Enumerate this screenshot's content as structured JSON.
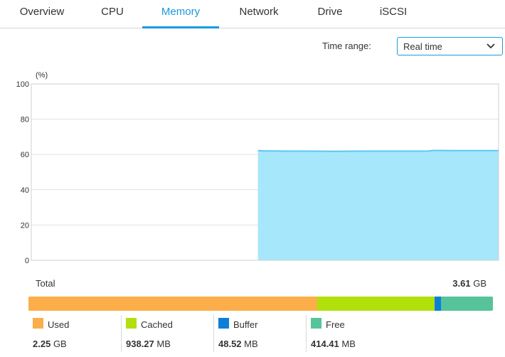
{
  "tabs": [
    {
      "label": "Overview"
    },
    {
      "label": "CPU"
    },
    {
      "label": "Memory",
      "active": true
    },
    {
      "label": "Network"
    },
    {
      "label": "Drive"
    },
    {
      "label": "iSCSI"
    }
  ],
  "time_range": {
    "label": "Time range:",
    "value": "Real time",
    "icon": "chevron-down-icon"
  },
  "chart_data": {
    "type": "area",
    "ylabel": "(%)",
    "ylim": [
      0,
      100
    ],
    "yticks": [
      "0",
      "20",
      "40",
      "60",
      "80",
      "100"
    ],
    "grid": true,
    "color": "#a6e7fb",
    "line_color": "#5cc8ec",
    "x": [
      0.485,
      0.5,
      0.55,
      0.6,
      0.65,
      0.7,
      0.75,
      0.8,
      0.85,
      0.86,
      0.9,
      0.95,
      1.0
    ],
    "values": [
      62.2,
      62.0,
      61.9,
      61.9,
      61.8,
      61.9,
      61.9,
      61.9,
      61.9,
      62.3,
      62.2,
      62.2,
      62.2
    ]
  },
  "total": {
    "label": "Total",
    "value": "3.61",
    "unit": "GB"
  },
  "memory": [
    {
      "name": "Used",
      "value": "2.25",
      "unit": "GB",
      "color": "#fbae4a",
      "share": 0.623
    },
    {
      "name": "Cached",
      "value": "938.27",
      "unit": "MB",
      "color": "#b1e00c",
      "share": 0.2538
    },
    {
      "name": "Buffer",
      "value": "48.52",
      "unit": "MB",
      "color": "#0d7fd6",
      "share": 0.0131
    },
    {
      "name": "Free",
      "value": "414.41",
      "unit": "MB",
      "color": "#57c39b",
      "share": 0.1121
    }
  ]
}
